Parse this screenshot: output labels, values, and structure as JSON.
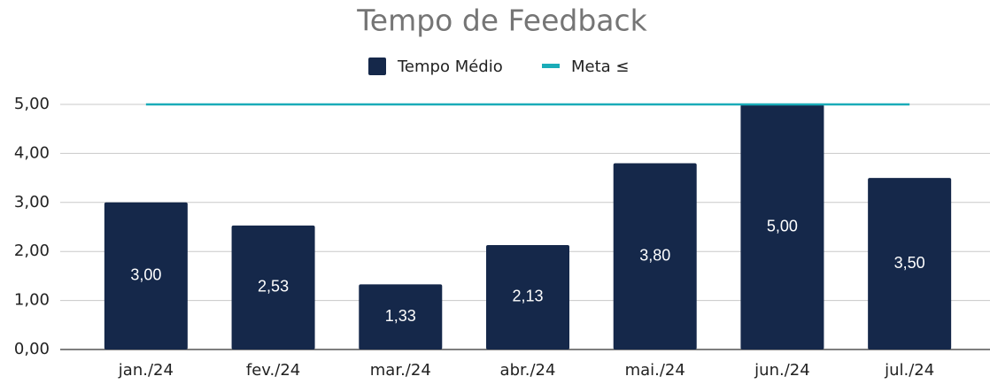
{
  "chart_data": {
    "type": "bar",
    "title": "Tempo de Feedback",
    "categories": [
      "jan./24",
      "fev./24",
      "mar./24",
      "abr./24",
      "mai./24",
      "jun./24",
      "jul./24"
    ],
    "series": [
      {
        "name": "Tempo Médio",
        "color": "#15284a",
        "values": [
          3.0,
          2.53,
          1.33,
          2.13,
          3.8,
          5.0,
          3.5
        ],
        "value_labels": [
          "3,00",
          "2,53",
          "1,33",
          "2,13",
          "3,80",
          "5,00",
          "3,50"
        ]
      },
      {
        "name": "Meta ≤",
        "color": "#1aacb8",
        "type": "line",
        "values": [
          5,
          5,
          5,
          5,
          5,
          5,
          5
        ]
      }
    ],
    "ylim": [
      0,
      5
    ],
    "yticks": [
      {
        "value": 0,
        "label": "0,00"
      },
      {
        "value": 1,
        "label": "1,00"
      },
      {
        "value": 2,
        "label": "2,00"
      },
      {
        "value": 3,
        "label": "3,00"
      },
      {
        "value": 4,
        "label": "4,00"
      },
      {
        "value": 5,
        "label": "5,00"
      }
    ],
    "grid": true
  }
}
